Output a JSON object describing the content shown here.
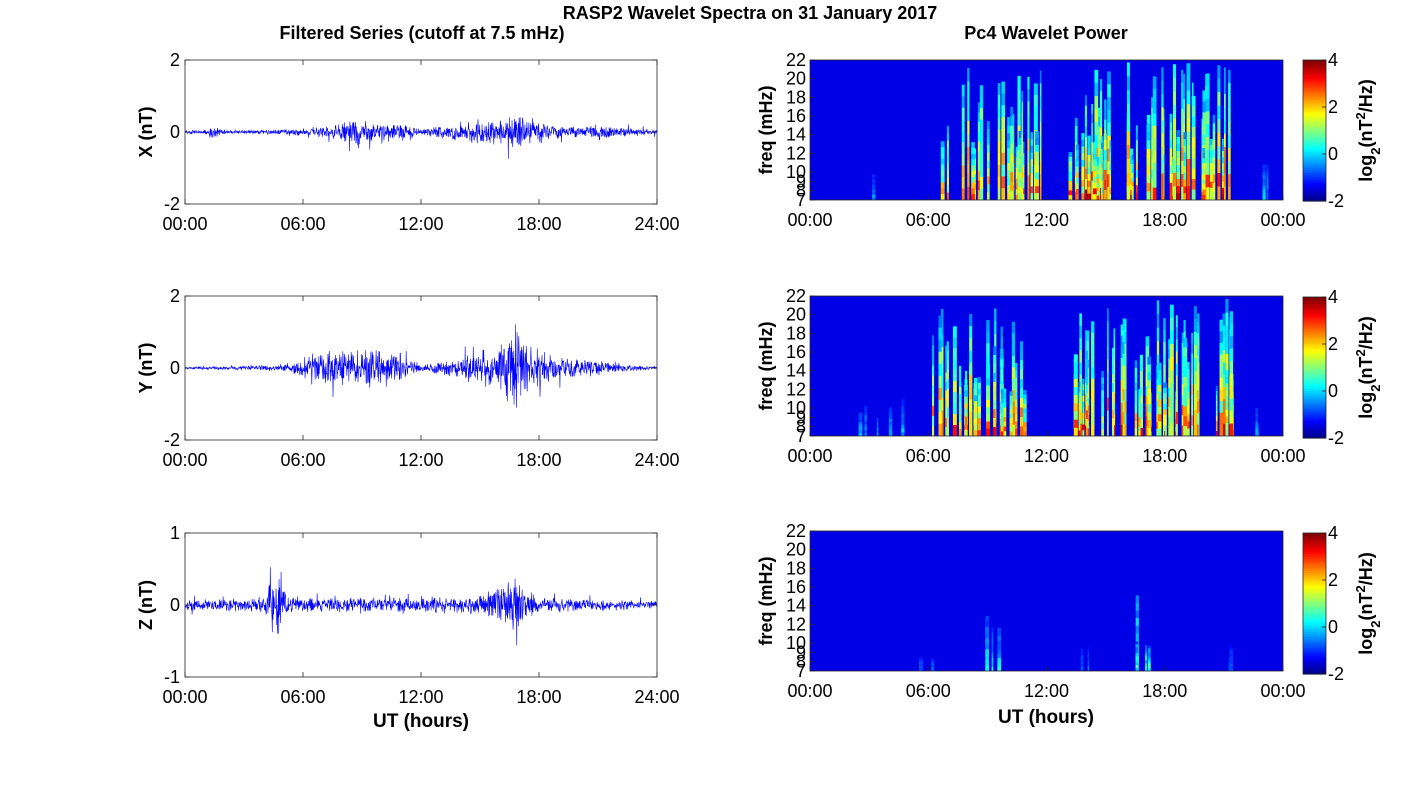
{
  "figure": {
    "title": "RASP2 Wavelet Spectra on 31 January 2017",
    "left_subtitle": "Filtered Series (cutoff at 7.5 mHz)",
    "right_subtitle": "Pc4 Wavelet Power",
    "x_label": "UT (hours)"
  },
  "chart_data": [
    {
      "type": "line",
      "panel": "X",
      "series": [
        {
          "values_note": "high-frequency filtered trace",
          "color": "#0000ff"
        }
      ],
      "ylabel": "X (nT)",
      "ylim": [
        -2,
        2
      ],
      "yticks": [
        "2",
        "0",
        "-2"
      ],
      "xlim": [
        0,
        24
      ],
      "xticks": [
        "00:00",
        "06:00",
        "12:00",
        "18:00",
        "24:00"
      ],
      "envelope": [
        [
          0,
          0.05
        ],
        [
          1,
          0.06
        ],
        [
          1.3,
          0.2
        ],
        [
          2,
          0.06
        ],
        [
          4,
          0.06
        ],
        [
          5,
          0.1
        ],
        [
          6.5,
          0.15
        ],
        [
          7.5,
          0.2
        ],
        [
          8.5,
          0.45
        ],
        [
          9.5,
          0.35
        ],
        [
          10.5,
          0.3
        ],
        [
          11.5,
          0.25
        ],
        [
          12,
          0.08
        ],
        [
          13,
          0.2
        ],
        [
          14,
          0.3
        ],
        [
          15,
          0.45
        ],
        [
          16,
          0.35
        ],
        [
          16.8,
          0.6
        ],
        [
          17.5,
          0.4
        ],
        [
          18.5,
          0.25
        ],
        [
          19.5,
          0.15
        ],
        [
          20.5,
          0.2
        ],
        [
          21.2,
          0.35
        ],
        [
          22,
          0.15
        ],
        [
          24,
          0.08
        ]
      ]
    },
    {
      "type": "line",
      "panel": "Y",
      "series": [
        {
          "values_note": "high-frequency filtered trace",
          "color": "#0000ff"
        }
      ],
      "ylabel": "Y (nT)",
      "ylim": [
        -2,
        2
      ],
      "yticks": [
        "2",
        "0",
        "-2"
      ],
      "xlim": [
        0,
        24
      ],
      "xticks": [
        "00:00",
        "06:00",
        "12:00",
        "18:00",
        "24:00"
      ],
      "envelope": [
        [
          0,
          0.04
        ],
        [
          3,
          0.06
        ],
        [
          5,
          0.12
        ],
        [
          6.5,
          0.5
        ],
        [
          7.5,
          0.5
        ],
        [
          8.5,
          0.55
        ],
        [
          9.5,
          0.6
        ],
        [
          10.5,
          0.5
        ],
        [
          11.5,
          0.35
        ],
        [
          12,
          0.08
        ],
        [
          13,
          0.2
        ],
        [
          14,
          0.35
        ],
        [
          15,
          0.6
        ],
        [
          16,
          0.7
        ],
        [
          16.8,
          1.4
        ],
        [
          17.5,
          0.7
        ],
        [
          18.5,
          0.5
        ],
        [
          19.5,
          0.3
        ],
        [
          20.5,
          0.3
        ],
        [
          21.5,
          0.2
        ],
        [
          22.5,
          0.1
        ],
        [
          24,
          0.06
        ]
      ]
    },
    {
      "type": "line",
      "panel": "Z",
      "series": [
        {
          "values_note": "high-frequency filtered trace",
          "color": "#0000ff"
        }
      ],
      "ylabel": "Z (nT)",
      "ylim": [
        -1,
        1
      ],
      "yticks": [
        "1",
        "0",
        "-1"
      ],
      "xlim": [
        0,
        24
      ],
      "xticks": [
        "00:00",
        "06:00",
        "12:00",
        "18:00",
        "24:00"
      ],
      "envelope": [
        [
          0,
          0.08
        ],
        [
          2,
          0.1
        ],
        [
          4,
          0.12
        ],
        [
          4.8,
          0.7
        ],
        [
          5.2,
          0.15
        ],
        [
          7,
          0.12
        ],
        [
          9,
          0.12
        ],
        [
          11,
          0.12
        ],
        [
          13,
          0.12
        ],
        [
          15,
          0.15
        ],
        [
          16.8,
          0.4
        ],
        [
          18,
          0.12
        ],
        [
          20,
          0.1
        ],
        [
          22,
          0.08
        ],
        [
          24,
          0.06
        ]
      ]
    },
    {
      "type": "heatmap",
      "panel": "X",
      "ylabel": "freq (mHz)",
      "yticks": [
        "22",
        "20",
        "18",
        "16",
        "14",
        "12",
        "10",
        "9",
        "8",
        "7"
      ],
      "ylim": [
        7,
        22
      ],
      "xlim": [
        0,
        24
      ],
      "xticks": [
        "00:00",
        "06:00",
        "12:00",
        "18:00",
        "00:00"
      ],
      "colorbar": {
        "label": "log2(nT^2/Hz)",
        "ticks": [
          "4",
          "2",
          "0",
          "-2"
        ],
        "range": [
          -2,
          4
        ]
      },
      "active_intervals": [
        [
          6.5,
          11.8,
          0.95
        ],
        [
          13.2,
          21.8,
          1.0
        ],
        [
          3.2,
          3.4,
          0.25
        ],
        [
          22.8,
          23.5,
          0.3
        ]
      ]
    },
    {
      "type": "heatmap",
      "panel": "Y",
      "ylabel": "freq (mHz)",
      "yticks": [
        "22",
        "20",
        "18",
        "16",
        "14",
        "12",
        "10",
        "9",
        "8",
        "7"
      ],
      "ylim": [
        7,
        22
      ],
      "xlim": [
        0,
        24
      ],
      "xticks": [
        "00:00",
        "06:00",
        "12:00",
        "18:00",
        "00:00"
      ],
      "colorbar": {
        "label": "log2(nT^2/Hz)",
        "ticks": [
          "4",
          "2",
          "0",
          "-2"
        ],
        "range": [
          -2,
          4
        ]
      },
      "active_intervals": [
        [
          2.2,
          5.0,
          0.3
        ],
        [
          6.2,
          11.5,
          0.95
        ],
        [
          13.0,
          21.5,
          1.0
        ],
        [
          22.5,
          23.5,
          0.3
        ]
      ]
    },
    {
      "type": "heatmap",
      "panel": "Z",
      "ylabel": "freq (mHz)",
      "yticks": [
        "22",
        "20",
        "18",
        "16",
        "14",
        "12",
        "10",
        "9",
        "8",
        "7"
      ],
      "ylim": [
        7,
        22
      ],
      "xlim": [
        0,
        24
      ],
      "xticks": [
        "00:00",
        "06:00",
        "12:00",
        "18:00",
        "00:00"
      ],
      "colorbar": {
        "label": "log2(nT^2/Hz)",
        "ticks": [
          "4",
          "2",
          "0",
          "-2"
        ],
        "range": [
          -2,
          4
        ]
      },
      "active_intervals": [
        [
          5.5,
          6.5,
          0.2
        ],
        [
          8.5,
          10.0,
          0.4
        ],
        [
          13.5,
          14.2,
          0.2
        ],
        [
          16.3,
          17.5,
          0.55
        ],
        [
          20.5,
          21.5,
          0.2
        ]
      ]
    }
  ]
}
